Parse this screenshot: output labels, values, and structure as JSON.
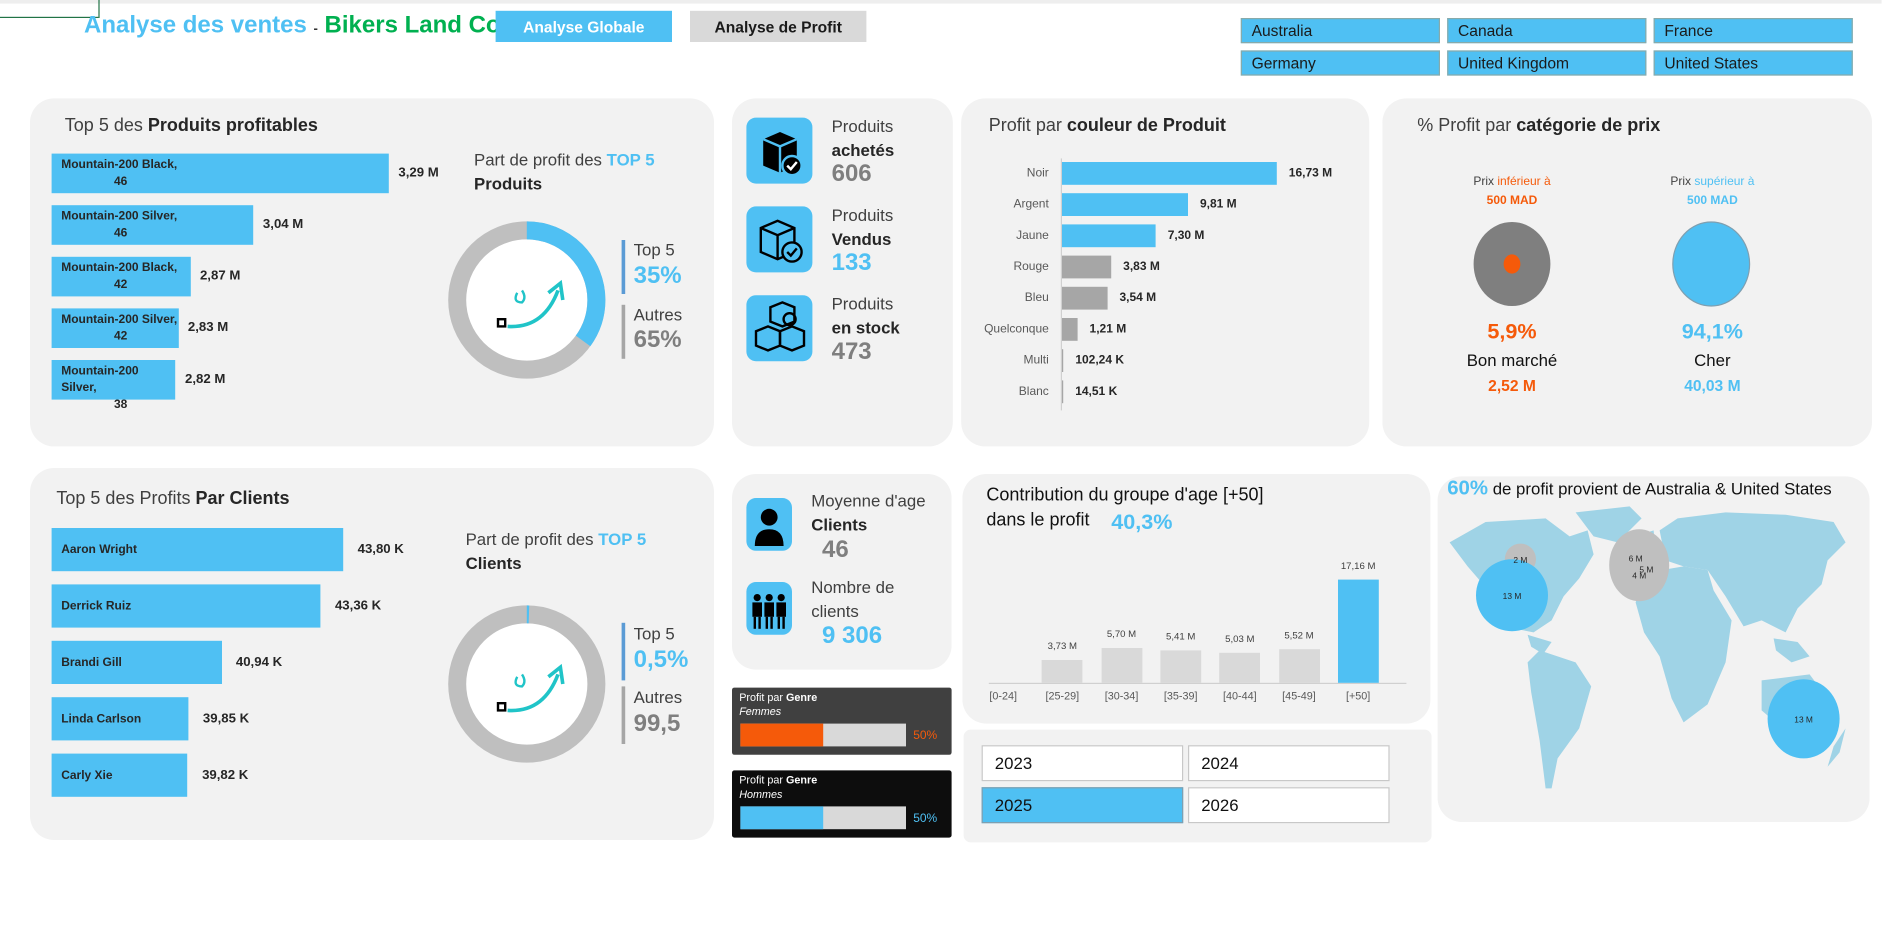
{
  "header": {
    "title_part1": "Analyse des ventes",
    "separator": "-",
    "title_part2": "Bikers Land Co",
    "btn_global": "Analyse Globale",
    "btn_profit": "Analyse de Profit"
  },
  "countries": [
    "Australia",
    "Canada",
    "France",
    "Germany",
    "United Kingdom",
    "United States"
  ],
  "top_products": {
    "title_pre": "Top 5 des ",
    "title_bold": "Produits profitables",
    "items": [
      {
        "name": "Mountain-200 Black,",
        "size": "46",
        "value": 3.29,
        "label": "3,29 M"
      },
      {
        "name": "Mountain-200 Silver,",
        "size": "46",
        "value": 3.04,
        "label": "3,04 M"
      },
      {
        "name": "Mountain-200 Black,",
        "size": "42",
        "value": 2.87,
        "label": "2,87 M"
      },
      {
        "name": "Mountain-200 Silver,",
        "size": "42",
        "value": 2.83,
        "label": "2,83 M"
      },
      {
        "name": "Mountain-200 Silver,",
        "size": "38",
        "value": 2.82,
        "label": "2,82 M"
      }
    ],
    "share_title_pre": "Part de profit des ",
    "share_title_accent": "TOP 5",
    "share_title_bold": "Produits",
    "top_label": "Top 5",
    "top_pct": "35%",
    "top_fraction": 0.35,
    "other_label": "Autres",
    "other_pct": "65%"
  },
  "top_clients": {
    "title_pre": "Top 5 des Profits ",
    "title_bold": "Par Clients",
    "items": [
      {
        "name": "Aaron Wright",
        "value": 43.8,
        "label": "43,80 K"
      },
      {
        "name": "Derrick Ruiz",
        "value": 43.36,
        "label": "43,36 K"
      },
      {
        "name": "Brandi Gill",
        "value": 40.94,
        "label": "40,94 K"
      },
      {
        "name": "Linda Carlson",
        "value": 39.85,
        "label": "39,85 K"
      },
      {
        "name": "Carly Xie",
        "value": 39.82,
        "label": "39,82 K"
      }
    ],
    "share_title_pre": "Part de profit des ",
    "share_title_accent": "TOP 5",
    "share_title_bold": "Clients",
    "top_label": "Top 5",
    "top_pct": "0,5%",
    "top_fraction": 0.005,
    "other_label": "Autres",
    "other_pct": "99,5"
  },
  "products_kpi": [
    {
      "l1": "Produits",
      "l2": "achetés",
      "value": "606",
      "icon": "box-check-icon"
    },
    {
      "l1": "Produits",
      "l2": "Vendus",
      "value": "133",
      "icon": "box-outline-check-icon"
    },
    {
      "l1": "Produits",
      "l2": "en stock",
      "value": "473",
      "icon": "stacked-boxes-icon"
    }
  ],
  "colors": {
    "title_pre": "Profit par ",
    "title_bold": "couleur de Produit",
    "items": [
      {
        "name": "Noir",
        "value": 16.73,
        "label": "16,73 M",
        "highlight": true
      },
      {
        "name": "Argent",
        "value": 9.81,
        "label": "9,81 M",
        "highlight": true
      },
      {
        "name": "Jaune",
        "value": 7.3,
        "label": "7,30 M",
        "highlight": true
      },
      {
        "name": "Rouge",
        "value": 3.83,
        "label": "3,83 M",
        "highlight": false
      },
      {
        "name": "Bleu",
        "value": 3.54,
        "label": "3,54 M",
        "highlight": false
      },
      {
        "name": "Quelconque",
        "value": 1.21,
        "label": "1,21 M",
        "highlight": false
      },
      {
        "name": "Multi",
        "value": 0.10224,
        "label": "102,24 K",
        "highlight": false
      },
      {
        "name": "Blanc",
        "value": 0.01451,
        "label": "14,51 K",
        "highlight": false
      }
    ]
  },
  "price": {
    "title_pre": "% Profit par ",
    "title_bold": "catégorie de prix",
    "low": {
      "l_pre": "Prix ",
      "l_accent": "inférieur à",
      "l2": "500 MAD",
      "pct": "5,9%",
      "name": "Bon marché",
      "value": "2,52 M"
    },
    "high": {
      "l_pre": "Prix ",
      "l_accent": "supérieur à",
      "l2": "500 MAD",
      "pct": "94,1%",
      "name": "Cher",
      "value": "40,03 M"
    }
  },
  "clients_kpi": [
    {
      "l1": "Moyenne d'age",
      "l2": "Clients",
      "value": "46",
      "icon": "person-icon"
    },
    {
      "l1": "Nombre de",
      "l2": "clients",
      "value": "9 306",
      "icon": "group-icon"
    }
  ],
  "gender": [
    {
      "title_pre": "Profit par ",
      "title_bold": "Genre",
      "sub": "Femmes",
      "pct": "50%",
      "fraction": 0.5,
      "color": "#f55a0a"
    },
    {
      "title_pre": "Profit par ",
      "title_bold": "Genre",
      "sub": "Hommes",
      "pct": "50%",
      "fraction": 0.5,
      "color": "#4fc0f3"
    }
  ],
  "age": {
    "title_l1": "Contribution du groupe d'age [+50]",
    "title_l2": "dans le profit",
    "pct": "40,3%",
    "chart_data": {
      "type": "bar",
      "categories": [
        "[0-24]",
        "[25-29]",
        "[30-34]",
        "[35-39]",
        "[40-44]",
        "[45-49]",
        "[+50]"
      ],
      "values": [
        0,
        3.73,
        5.7,
        5.41,
        5.03,
        5.52,
        17.16
      ],
      "labels": [
        "",
        "3,73 M",
        "5,70 M",
        "5,41 M",
        "5,03 M",
        "5,52 M",
        "17,16 M"
      ],
      "highlight": "[+50]"
    }
  },
  "years": [
    {
      "label": "2023",
      "selected": false
    },
    {
      "label": "2024",
      "selected": false
    },
    {
      "label": "2025",
      "selected": true
    },
    {
      "label": "2026",
      "selected": false
    }
  ],
  "map": {
    "pct": "60%",
    "text": " de profit provient de Australia & United States",
    "bubbles": [
      {
        "label": "2 M",
        "region": "Canada"
      },
      {
        "label": "13 M",
        "region": "United States"
      },
      {
        "label": "6 M",
        "region": "United Kingdom"
      },
      {
        "label": "5 M",
        "region": "Germany"
      },
      {
        "label": "4 M",
        "region": "France"
      },
      {
        "label": "13 M",
        "region": "Australia"
      }
    ]
  },
  "colors_theme": {
    "accent": "#4fc0f3",
    "green": "#00b050",
    "orange": "#f55a0a",
    "gray": "#a6a6a6",
    "panel": "#f2f2f2"
  }
}
